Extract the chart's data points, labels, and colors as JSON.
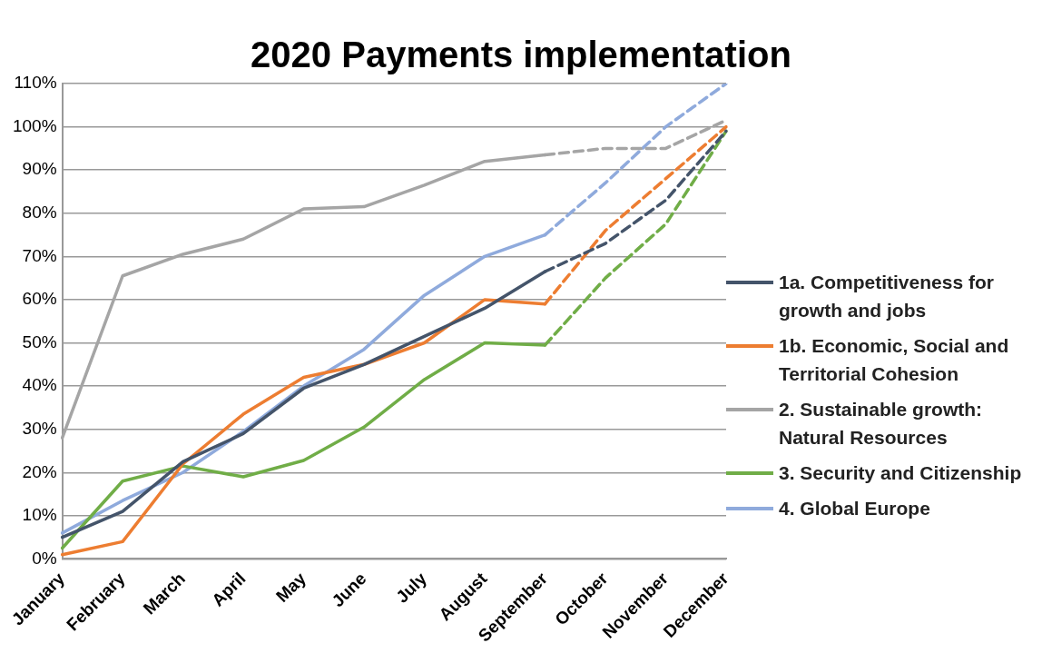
{
  "chart_data": {
    "type": "line",
    "title": "2020 Payments implementation",
    "categories": [
      "January",
      "February",
      "March",
      "April",
      "May",
      "June",
      "July",
      "August",
      "September",
      "October",
      "November",
      "December"
    ],
    "series": [
      {
        "name": "1a. Competitiveness for growth and jobs",
        "color": "#44546a",
        "values": [
          5,
          11,
          22.5,
          29,
          39.5,
          45,
          51.5,
          58,
          66.5,
          null,
          null,
          null
        ]
      },
      {
        "name": "1b. Economic, Social and Territorial Cohesion",
        "color": "#ed7d31",
        "values": [
          1,
          4,
          22,
          33.5,
          42,
          45,
          50,
          60,
          59,
          null,
          null,
          null
        ]
      },
      {
        "name": "2. Sustainable growth: Natural Resources",
        "color": "#a5a5a5",
        "values": [
          28,
          65.5,
          70.5,
          74,
          81,
          81.5,
          86.5,
          92,
          93.5,
          null,
          null,
          null
        ]
      },
      {
        "name": "3. Security and Citizenship",
        "color": "#70ad47",
        "values": [
          2.5,
          18,
          21.5,
          19,
          22.8,
          30.5,
          41.5,
          50,
          49.5,
          null,
          null,
          null
        ]
      },
      {
        "name": "4. Global Europe",
        "color": "#8faadc",
        "values": [
          6,
          13.5,
          20,
          29.5,
          40,
          48.5,
          61,
          70,
          75,
          null,
          null,
          null
        ]
      },
      {
        "color": "#44546a",
        "line_style": "dashed",
        "values": [
          null,
          null,
          null,
          null,
          null,
          null,
          null,
          null,
          66.5,
          73,
          83,
          99
        ]
      },
      {
        "color": "#ed7d31",
        "line_style": "dashed",
        "values": [
          null,
          null,
          null,
          null,
          null,
          null,
          null,
          null,
          59,
          76,
          88,
          100
        ]
      },
      {
        "color": "#a5a5a5",
        "line_style": "dashed",
        "values": [
          null,
          null,
          null,
          null,
          null,
          null,
          null,
          null,
          93.5,
          95,
          95,
          101.5
        ]
      },
      {
        "color": "#70ad47",
        "line_style": "dashed",
        "values": [
          null,
          null,
          null,
          null,
          null,
          null,
          null,
          null,
          49.5,
          65,
          77.5,
          99
        ]
      },
      {
        "color": "#8faadc",
        "line_style": "dashed",
        "values": [
          null,
          null,
          null,
          null,
          null,
          null,
          null,
          null,
          75,
          87,
          100,
          110
        ]
      }
    ],
    "ylim": [
      0,
      110
    ],
    "yticks": [
      {
        "value": 0,
        "label": "0%"
      },
      {
        "value": 10,
        "label": "10%"
      },
      {
        "value": 20,
        "label": "20%"
      },
      {
        "value": 30,
        "label": "30%"
      },
      {
        "value": 40,
        "label": "40%"
      },
      {
        "value": 50,
        "label": "50%"
      },
      {
        "value": 60,
        "label": "60%"
      },
      {
        "value": 70,
        "label": "70%"
      },
      {
        "value": 80,
        "label": "80%"
      },
      {
        "value": 90,
        "label": "90%"
      },
      {
        "value": 100,
        "label": "100%"
      },
      {
        "value": 110,
        "label": "110%"
      }
    ],
    "grid": "y",
    "legend": "right",
    "marker": "none",
    "line_style": "solid"
  }
}
